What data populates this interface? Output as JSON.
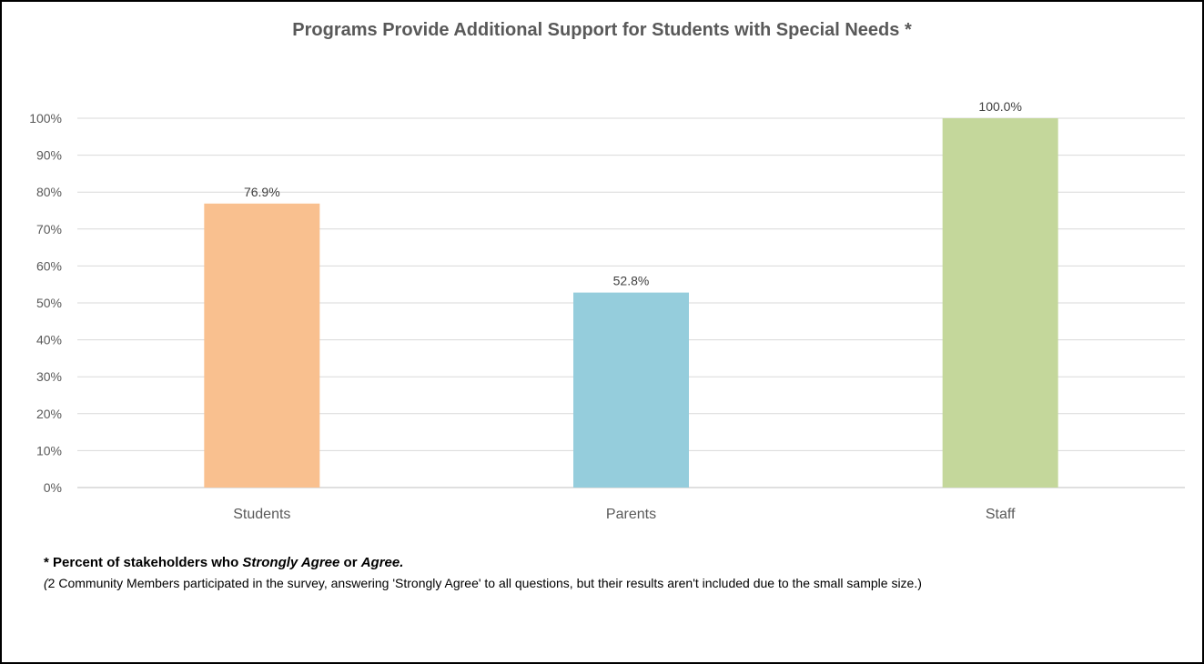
{
  "chart_data": {
    "type": "bar",
    "title": "Programs Provide Additional Support for Students with Special Needs *",
    "xlabel": "",
    "ylabel": "",
    "categories": [
      "Students",
      "Parents",
      "Staff"
    ],
    "values": [
      76.9,
      52.8,
      100.0
    ],
    "data_labels": [
      "76.9%",
      "52.8%",
      "100.0%"
    ],
    "colors": [
      "#F9C08F",
      "#95CDDC",
      "#C4D79B"
    ],
    "ylim": [
      0,
      100
    ],
    "yticks": [
      0,
      10,
      20,
      30,
      40,
      50,
      60,
      70,
      80,
      90,
      100
    ],
    "ytick_labels": [
      "0%",
      "10%",
      "20%",
      "30%",
      "40%",
      "50%",
      "60%",
      "70%",
      "80%",
      "90%",
      "100%"
    ],
    "grid": true,
    "legend": "none"
  },
  "footnote": {
    "prefix": "* Percent of stakeholders  who ",
    "term1": "Strongly Agree",
    "connector": " or ",
    "term2": "Agree.",
    "note_open": "(",
    "note_text": "2 Community Members participated in the survey, answering 'Strongly Agree' to all questions, but their results aren't included due to the small sample size.)"
  }
}
